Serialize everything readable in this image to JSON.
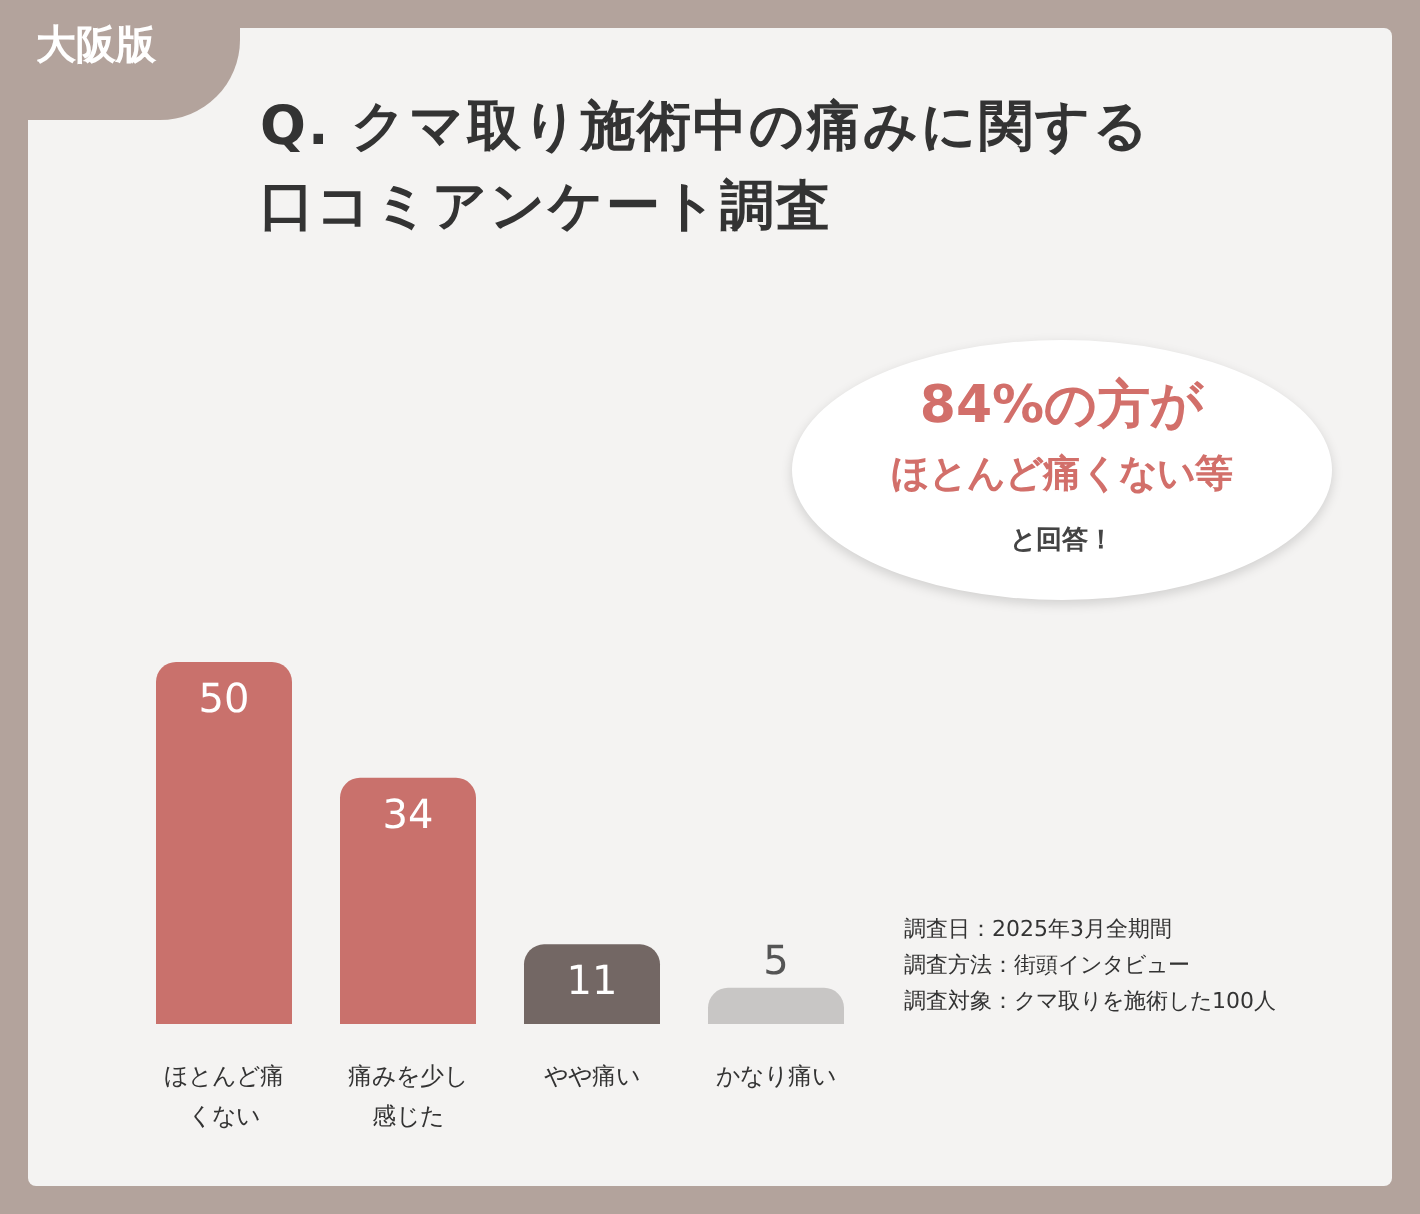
{
  "chart_data": {
    "type": "bar",
    "title": "Q. クマ取り施術中の痛みに関する口コミアンケート調査",
    "categories": [
      "ほとんど痛くない",
      "痛みを少し感じた",
      "やや痛い",
      "かなり痛い"
    ],
    "values": [
      50,
      34,
      11,
      5
    ],
    "colors": [
      "#c9716c",
      "#c9716c",
      "#736764",
      "#c8c6c5"
    ],
    "data_labels": true,
    "annotations": [
      "大阪版",
      "84%の方が",
      "ほとんど痛くない等",
      "と回答！",
      "調査日：2025年3月全期間",
      "調査方法：街頭インタビュー",
      "調査対象：クマ取りを施術した100人"
    ]
  }
}
